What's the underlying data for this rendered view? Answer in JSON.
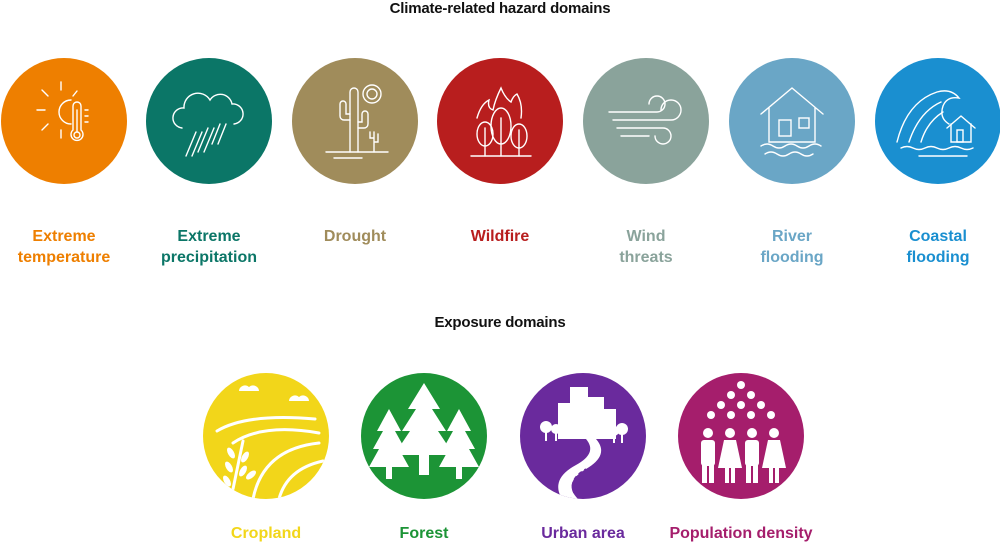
{
  "hazard_title": "Climate-related hazard domains",
  "exposure_title": "Exposure domains",
  "hazards": [
    {
      "label": "Extreme\ntemperature",
      "color": "#ee7f00",
      "icon": "thermometer-sun-icon"
    },
    {
      "label": "Extreme\nprecipitation",
      "color": "#0b7667",
      "icon": "rain-cloud-icon"
    },
    {
      "label": "Drought",
      "color": "#a08c5b",
      "icon": "cactus-sun-icon"
    },
    {
      "label": "Wildfire",
      "color": "#b81e1e",
      "icon": "burning-trees-icon"
    },
    {
      "label": "Wind\nthreats",
      "color": "#8aa39b",
      "icon": "wind-icon"
    },
    {
      "label": "River\nflooding",
      "color": "#6aa6c6",
      "icon": "flooded-house-icon"
    },
    {
      "label": "Coastal\nflooding",
      "color": "#1a8fd0",
      "icon": "wave-house-icon"
    }
  ],
  "exposures": [
    {
      "label": "Cropland",
      "color": "#f2d61a",
      "icon": "field-crop-icon"
    },
    {
      "label": "Forest",
      "color": "#1c9436",
      "icon": "forest-trees-icon"
    },
    {
      "label": "Urban area",
      "color": "#6a2a9d",
      "icon": "city-road-icon"
    },
    {
      "label": "Population density",
      "color": "#a51e6c",
      "icon": "people-group-icon"
    }
  ]
}
